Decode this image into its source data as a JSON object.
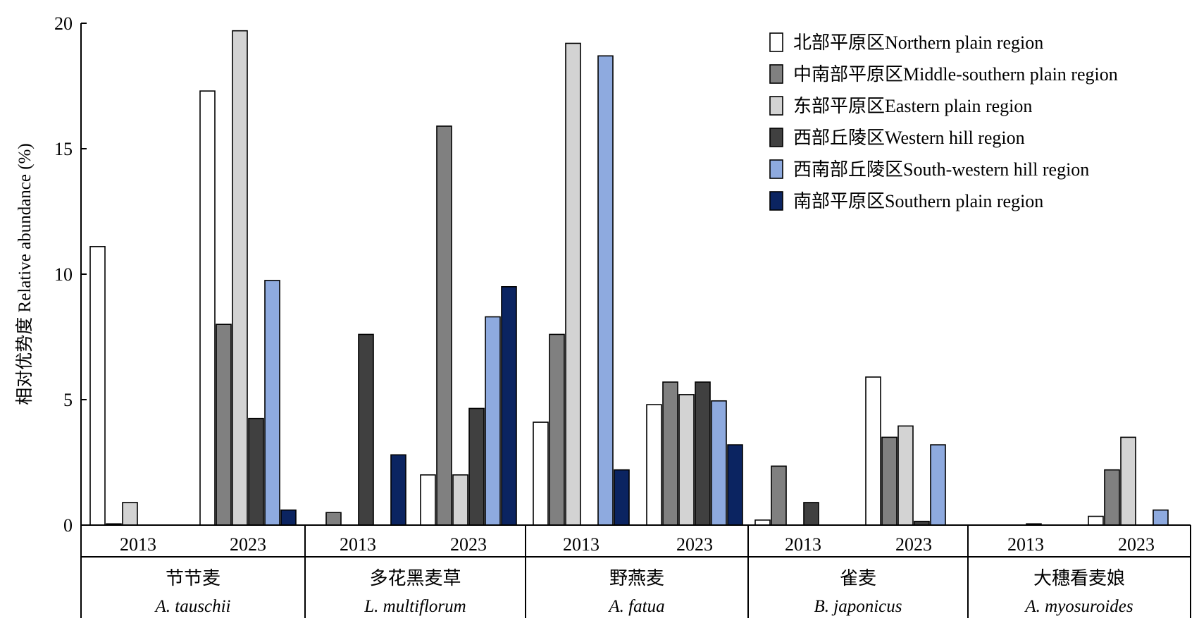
{
  "chart_data": {
    "type": "bar",
    "ylabel": "相对优势度 Relative abundance (%)",
    "ylim": [
      0,
      20
    ],
    "yticks": [
      "0",
      "5",
      "10",
      "15",
      "20"
    ],
    "grid": false,
    "legend_position": "top-right",
    "series": [
      {
        "name": "北部平原区Northern plain region",
        "color": "#ffffff",
        "values": [
          11.1,
          17.3,
          0,
          2.0,
          4.1,
          4.8,
          0.2,
          5.9,
          0,
          0.35
        ]
      },
      {
        "name": "中南部平原区Middle-southern plain region",
        "color": "#808080",
        "values": [
          0.05,
          8.0,
          0.5,
          15.9,
          7.6,
          5.7,
          2.35,
          3.5,
          0,
          2.2
        ]
      },
      {
        "name": "东部平原区Eastern plain region",
        "color": "#d3d3d3",
        "values": [
          0.9,
          19.7,
          0,
          2.0,
          19.2,
          5.2,
          0,
          3.95,
          0,
          3.5
        ]
      },
      {
        "name": "西部丘陵区Western hill region",
        "color": "#404040",
        "values": [
          0,
          4.25,
          7.6,
          4.65,
          0,
          5.7,
          0.9,
          0.15,
          0.05,
          0
        ]
      },
      {
        "name": "西南部丘陵区South-western hill region",
        "color": "#8eaadf",
        "values": [
          0,
          9.75,
          0,
          8.3,
          18.7,
          4.95,
          0,
          3.2,
          0,
          0.6
        ]
      },
      {
        "name": "南部平原区Southern plain region",
        "color": "#0b2461",
        "values": [
          0,
          0.6,
          2.8,
          9.5,
          2.2,
          3.2,
          0,
          0,
          0,
          0
        ]
      }
    ],
    "groups": [
      {
        "cn": "节节麦",
        "latin": "A. tauschii",
        "years": [
          "2013",
          "2023"
        ]
      },
      {
        "cn": "多花黑麦草",
        "latin": "L. multiflorum",
        "years": [
          "2013",
          "2023"
        ]
      },
      {
        "cn": "野燕麦",
        "latin": "A. fatua",
        "years": [
          "2013",
          "2023"
        ]
      },
      {
        "cn": "雀麦",
        "latin": "B. japonicus",
        "years": [
          "2013",
          "2023"
        ]
      },
      {
        "cn": "大穗看麦娘",
        "latin": "A. myosuroides",
        "years": [
          "2013",
          "2023"
        ]
      }
    ]
  }
}
